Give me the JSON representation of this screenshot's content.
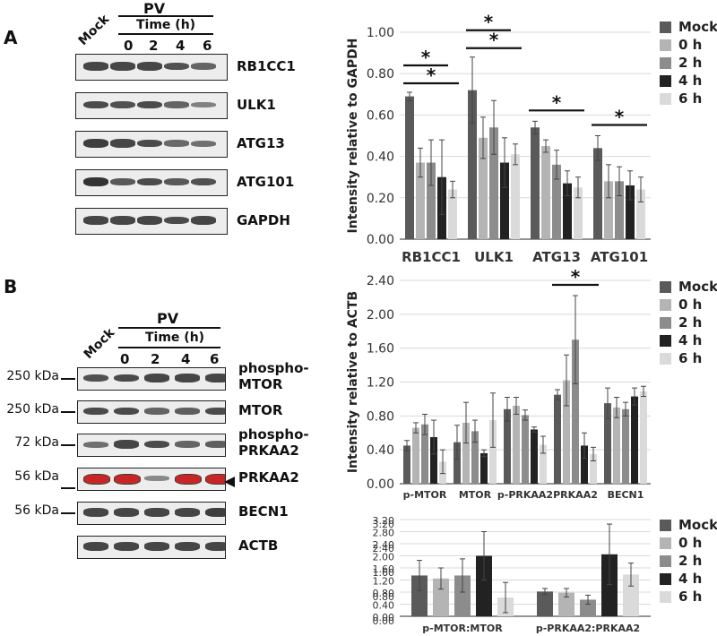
{
  "panel_a": {
    "letter": "A",
    "treatment_label": "PV",
    "time_label": "Time (h)",
    "lanes": [
      "Mock",
      "0",
      "2",
      "4",
      "6"
    ],
    "blots": [
      {
        "label": "RB1CC1",
        "bands": [
          0.85,
          0.85,
          0.85,
          0.75,
          0.6
        ]
      },
      {
        "label": "ULK1",
        "bands": [
          0.8,
          0.75,
          0.8,
          0.6,
          0.35
        ]
      },
      {
        "label": "ATG13",
        "bands": [
          0.9,
          0.85,
          0.8,
          0.55,
          0.5
        ]
      },
      {
        "label": "ATG101",
        "bands": [
          1.0,
          0.7,
          0.8,
          0.7,
          0.75
        ]
      },
      {
        "label": "GAPDH",
        "bands": [
          0.85,
          0.85,
          0.85,
          0.8,
          0.85
        ]
      }
    ]
  },
  "panel_b": {
    "letter": "B",
    "treatment_label": "PV",
    "time_label": "Time (h)",
    "lanes": [
      "Mock",
      "0",
      "2",
      "4",
      "6"
    ],
    "blots": [
      {
        "label1": "phospho-",
        "label2": "MTOR",
        "kda": "250 kDa",
        "bands": [
          0.75,
          0.8,
          0.85,
          0.85,
          0.85
        ],
        "red": false
      },
      {
        "label1": "MTOR",
        "label2": "",
        "kda": "250 kDa",
        "bands": [
          0.8,
          0.8,
          0.6,
          0.65,
          0.8
        ],
        "red": false
      },
      {
        "label1": "phospho-",
        "label2": "PRKAA2",
        "kda": "72 kDa",
        "bands": [
          0.5,
          0.85,
          0.8,
          0.6,
          0.65
        ],
        "red": false
      },
      {
        "label1": "PRKAA2",
        "label2": "",
        "kda": "56 kDa",
        "bands": [
          0.9,
          0.9,
          0.3,
          0.9,
          0.9
        ],
        "red": true
      },
      {
        "label1": "BECN1",
        "label2": "",
        "kda": "56 kDa",
        "bands": [
          0.85,
          0.85,
          0.85,
          0.85,
          0.9
        ],
        "red": false
      },
      {
        "label1": "ACTB",
        "label2": "",
        "kda": "",
        "bands": [
          0.85,
          0.85,
          0.85,
          0.85,
          0.85
        ],
        "red": false
      }
    ]
  },
  "legend": {
    "items": [
      "Mock",
      "0 h",
      "2 h",
      "4 h",
      "6 h"
    ],
    "colors": [
      "#5a5a5a",
      "#b4b4b4",
      "#8c8c8c",
      "#222222",
      "#dadada"
    ]
  },
  "chart_data": [
    {
      "type": "bar",
      "ylabel": "Intensity relative to GAPDH",
      "ylim": [
        0,
        1.0
      ],
      "yticks": [
        "0.00",
        "0.20",
        "0.40",
        "0.60",
        "0.80",
        "1.00"
      ],
      "categories": [
        "RB1CC1",
        "ULK1",
        "ATG13",
        "ATG101"
      ],
      "series": [
        {
          "name": "Mock",
          "values": [
            0.69,
            0.72,
            0.54,
            0.44
          ],
          "errors": [
            0.02,
            0.16,
            0.03,
            0.06
          ]
        },
        {
          "name": "0 h",
          "values": [
            0.37,
            0.49,
            0.45,
            0.28
          ],
          "errors": [
            0.07,
            0.1,
            0.03,
            0.08
          ]
        },
        {
          "name": "2 h",
          "values": [
            0.37,
            0.54,
            0.36,
            0.28
          ],
          "errors": [
            0.11,
            0.13,
            0.07,
            0.07
          ]
        },
        {
          "name": "4 h",
          "values": [
            0.3,
            0.37,
            0.27,
            0.26
          ],
          "errors": [
            0.18,
            0.12,
            0.06,
            0.07
          ]
        },
        {
          "name": "6 h",
          "values": [
            0.24,
            0.41,
            0.25,
            0.24
          ],
          "errors": [
            0.04,
            0.05,
            0.05,
            0.06
          ]
        }
      ],
      "significance": [
        {
          "category": 0,
          "from": 0,
          "to": 3,
          "label": "*"
        },
        {
          "category": 0,
          "from": 0,
          "to": 4,
          "label": "*"
        },
        {
          "category": 1,
          "from": 0,
          "to": 3,
          "label": "*"
        },
        {
          "category": 1,
          "from": 0,
          "to": 4,
          "label": "*"
        },
        {
          "category": 2,
          "from": 0,
          "to": 4,
          "label": "*"
        },
        {
          "category": 3,
          "from": 0,
          "to": 4,
          "label": "*"
        }
      ]
    },
    {
      "type": "bar",
      "ylabel": "Intensity relative to ACTB",
      "ylim": [
        0,
        2.4
      ],
      "yticks": [
        "0.00",
        "0.40",
        "0.80",
        "1.20",
        "1.60",
        "2.00",
        "2.40"
      ],
      "categories": [
        "p-MTOR",
        "MTOR",
        "p-PRKAA2",
        "PRKAA2",
        "BECN1"
      ],
      "series": [
        {
          "name": "Mock",
          "values": [
            0.45,
            0.49,
            0.88,
            1.05,
            0.95
          ],
          "errors": [
            0.06,
            0.2,
            0.14,
            0.06,
            0.18
          ]
        },
        {
          "name": "0 h",
          "values": [
            0.66,
            0.72,
            0.92,
            1.22,
            0.9
          ],
          "errors": [
            0.06,
            0.24,
            0.1,
            0.3,
            0.12
          ]
        },
        {
          "name": "2 h",
          "values": [
            0.7,
            0.62,
            0.81,
            1.7,
            0.88
          ],
          "errors": [
            0.12,
            0.13,
            0.06,
            0.52,
            0.08
          ]
        },
        {
          "name": "4 h",
          "values": [
            0.55,
            0.36,
            0.64,
            0.45,
            1.03
          ],
          "errors": [
            0.2,
            0.04,
            0.03,
            0.15,
            0.1
          ]
        },
        {
          "name": "6 h",
          "values": [
            0.26,
            0.75,
            0.46,
            0.35,
            1.09
          ],
          "errors": [
            0.14,
            0.32,
            0.1,
            0.08,
            0.06
          ]
        }
      ],
      "significance": [
        {
          "category": 3,
          "from": 0,
          "to": 4,
          "label": "*"
        }
      ]
    },
    {
      "type": "bar",
      "ylim": [
        0,
        3.2
      ],
      "yticks": [
        "0.00",
        "0.40",
        "0.80",
        "1.20",
        "1.60",
        "2.00",
        "2.40",
        "2.80",
        "3.20"
      ],
      "yticks_overlay": [
        "0.00",
        "0.80",
        "1.60",
        "2.40",
        "3.20"
      ],
      "categories": [
        "p-MTOR:MTOR",
        "p-PRKAA2:PRKAA2"
      ],
      "series": [
        {
          "name": "Mock",
          "values": [
            1.35,
            0.82
          ],
          "errors": [
            0.5,
            0.1
          ]
        },
        {
          "name": "0 h",
          "values": [
            1.25,
            0.78
          ],
          "errors": [
            0.35,
            0.14
          ]
        },
        {
          "name": "2 h",
          "values": [
            1.35,
            0.55
          ],
          "errors": [
            0.55,
            0.15
          ]
        },
        {
          "name": "4 h",
          "values": [
            2.0,
            2.05
          ],
          "errors": [
            0.8,
            1.0
          ]
        },
        {
          "name": "6 h",
          "values": [
            0.62,
            1.38
          ],
          "errors": [
            0.5,
            0.38
          ]
        }
      ]
    }
  ]
}
